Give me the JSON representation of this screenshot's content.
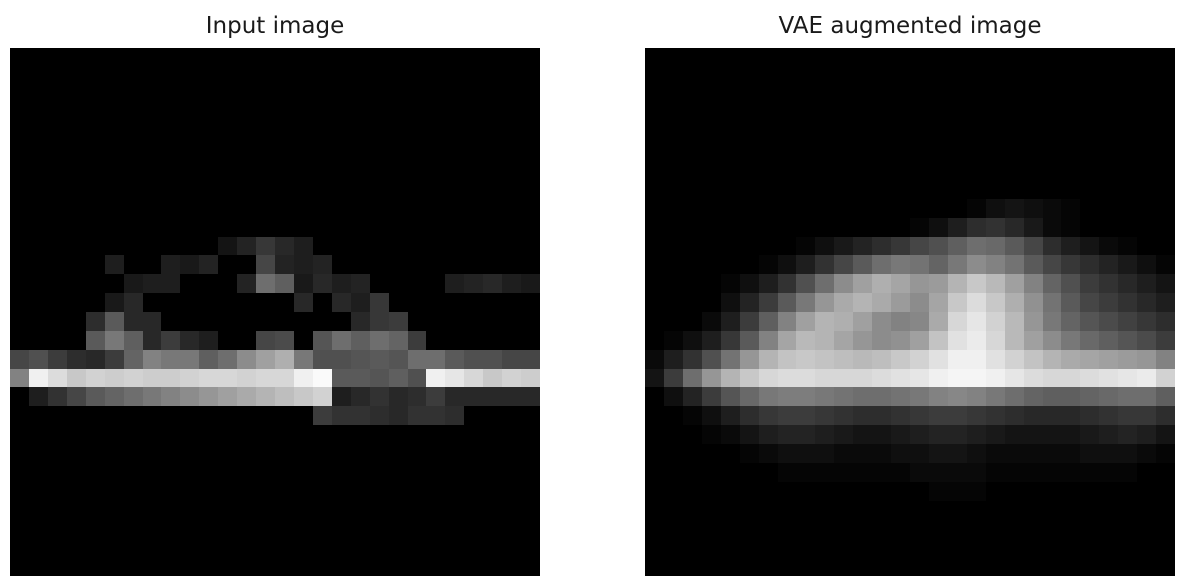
{
  "figure": {
    "panels": [
      {
        "title": "Input image",
        "grid_size": 28,
        "rows": {
          "10": [
            0,
            0,
            0,
            0,
            0,
            0,
            0,
            0,
            0,
            0,
            0,
            20,
            35,
            55,
            40,
            30,
            0,
            0,
            0,
            0,
            0,
            0,
            0,
            0,
            0,
            0,
            0,
            0
          ],
          "11": [
            0,
            0,
            0,
            0,
            0,
            30,
            0,
            0,
            30,
            25,
            35,
            0,
            0,
            70,
            35,
            30,
            35,
            0,
            0,
            0,
            0,
            0,
            0,
            0,
            0,
            0,
            0,
            0
          ],
          "12": [
            0,
            0,
            0,
            0,
            0,
            0,
            25,
            30,
            30,
            0,
            0,
            0,
            35,
            110,
            95,
            25,
            40,
            30,
            35,
            0,
            0,
            0,
            0,
            30,
            35,
            40,
            30,
            25
          ],
          "13": [
            0,
            0,
            0,
            0,
            0,
            25,
            40,
            0,
            0,
            0,
            0,
            0,
            0,
            0,
            0,
            40,
            0,
            40,
            30,
            55,
            0,
            0,
            0,
            0,
            0,
            0,
            0,
            0
          ],
          "14": [
            0,
            0,
            0,
            0,
            45,
            90,
            40,
            40,
            0,
            0,
            0,
            0,
            0,
            0,
            0,
            0,
            0,
            0,
            40,
            55,
            60,
            0,
            0,
            0,
            0,
            0,
            0,
            0
          ],
          "15": [
            0,
            0,
            0,
            0,
            90,
            120,
            95,
            40,
            60,
            40,
            30,
            0,
            0,
            70,
            75,
            0,
            85,
            110,
            95,
            110,
            100,
            60,
            0,
            0,
            0,
            0,
            0,
            0
          ],
          "16": [
            70,
            80,
            60,
            45,
            40,
            60,
            100,
            130,
            120,
            120,
            95,
            110,
            140,
            160,
            175,
            120,
            80,
            80,
            85,
            90,
            85,
            110,
            110,
            90,
            80,
            80,
            70,
            70
          ],
          "17": [
            130,
            240,
            220,
            200,
            210,
            205,
            210,
            205,
            205,
            210,
            215,
            215,
            210,
            215,
            215,
            240,
            250,
            90,
            90,
            85,
            95,
            80,
            240,
            230,
            215,
            200,
            210,
            205
          ],
          "18": [
            0,
            30,
            50,
            70,
            90,
            100,
            110,
            120,
            130,
            140,
            150,
            160,
            170,
            180,
            190,
            200,
            210,
            30,
            40,
            50,
            40,
            45,
            60,
            40,
            40,
            40,
            40,
            40
          ],
          "19": [
            0,
            0,
            0,
            0,
            0,
            0,
            0,
            0,
            0,
            0,
            0,
            0,
            0,
            0,
            0,
            0,
            60,
            50,
            50,
            45,
            40,
            50,
            50,
            45,
            0,
            0,
            0,
            0
          ]
        }
      },
      {
        "title": "VAE augmented image",
        "grid_size": 28,
        "rows": {
          "7": [
            0,
            0,
            0,
            0,
            0,
            0,
            0,
            0,
            0,
            0,
            0,
            0,
            0,
            0,
            0,
            0,
            0,
            0,
            0,
            0,
            0,
            0,
            0,
            0,
            0,
            0,
            0,
            0
          ],
          "8": [
            0,
            0,
            0,
            0,
            0,
            0,
            0,
            0,
            0,
            0,
            0,
            0,
            0,
            0,
            0,
            0,
            0,
            5,
            15,
            20,
            15,
            10,
            5,
            0,
            0,
            0,
            0,
            0
          ],
          "9": [
            0,
            0,
            0,
            0,
            0,
            0,
            0,
            0,
            0,
            0,
            0,
            0,
            0,
            0,
            5,
            15,
            30,
            45,
            50,
            40,
            25,
            10,
            5,
            0,
            0,
            0,
            0,
            0
          ],
          "10": [
            0,
            0,
            0,
            0,
            0,
            0,
            0,
            0,
            5,
            15,
            25,
            35,
            45,
            55,
            70,
            80,
            95,
            110,
            105,
            90,
            70,
            45,
            30,
            20,
            10,
            5,
            0,
            0
          ],
          "11": [
            0,
            0,
            0,
            0,
            0,
            0,
            5,
            15,
            30,
            50,
            70,
            90,
            110,
            120,
            115,
            100,
            120,
            140,
            130,
            115,
            90,
            70,
            55,
            45,
            35,
            25,
            15,
            5
          ],
          "12": [
            0,
            0,
            0,
            0,
            5,
            15,
            30,
            50,
            80,
            110,
            140,
            160,
            175,
            165,
            150,
            155,
            180,
            200,
            185,
            160,
            130,
            100,
            80,
            60,
            50,
            40,
            30,
            20
          ],
          "13": [
            0,
            0,
            0,
            0,
            15,
            35,
            60,
            90,
            120,
            150,
            170,
            180,
            170,
            155,
            140,
            165,
            200,
            220,
            200,
            175,
            145,
            115,
            90,
            70,
            60,
            50,
            40,
            30
          ],
          "14": [
            0,
            0,
            0,
            10,
            30,
            60,
            95,
            130,
            160,
            180,
            175,
            160,
            140,
            130,
            135,
            170,
            215,
            230,
            210,
            185,
            150,
            120,
            100,
            85,
            75,
            65,
            55,
            45
          ],
          "15": [
            0,
            5,
            15,
            30,
            55,
            90,
            130,
            165,
            185,
            180,
            165,
            150,
            140,
            145,
            160,
            195,
            225,
            235,
            215,
            185,
            160,
            140,
            120,
            105,
            95,
            85,
            75,
            60
          ],
          "16": [
            10,
            30,
            50,
            80,
            115,
            150,
            180,
            195,
            200,
            195,
            190,
            185,
            190,
            200,
            210,
            225,
            240,
            240,
            225,
            210,
            195,
            180,
            170,
            165,
            160,
            155,
            150,
            130
          ],
          "17": [
            20,
            60,
            110,
            150,
            180,
            200,
            215,
            220,
            220,
            215,
            215,
            215,
            220,
            225,
            230,
            240,
            245,
            245,
            240,
            230,
            220,
            215,
            215,
            220,
            225,
            230,
            235,
            210
          ],
          "18": [
            0,
            15,
            35,
            60,
            85,
            105,
            120,
            125,
            125,
            120,
            115,
            110,
            110,
            115,
            120,
            130,
            135,
            130,
            120,
            110,
            100,
            95,
            95,
            100,
            105,
            110,
            110,
            95
          ],
          "19": [
            0,
            0,
            5,
            15,
            30,
            45,
            55,
            60,
            60,
            55,
            50,
            45,
            45,
            50,
            55,
            60,
            60,
            55,
            50,
            45,
            40,
            40,
            40,
            45,
            50,
            55,
            55,
            45
          ],
          "20": [
            0,
            0,
            0,
            5,
            10,
            20,
            30,
            35,
            35,
            30,
            25,
            20,
            20,
            25,
            30,
            35,
            35,
            30,
            25,
            20,
            20,
            20,
            20,
            25,
            30,
            35,
            30,
            20
          ],
          "21": [
            0,
            0,
            0,
            0,
            0,
            5,
            10,
            15,
            15,
            15,
            10,
            10,
            10,
            15,
            15,
            20,
            20,
            15,
            10,
            10,
            10,
            10,
            10,
            15,
            15,
            15,
            10,
            5
          ],
          "22": [
            0,
            0,
            0,
            0,
            0,
            0,
            0,
            5,
            5,
            5,
            5,
            5,
            5,
            5,
            10,
            10,
            10,
            10,
            5,
            5,
            5,
            5,
            5,
            5,
            5,
            5,
            0,
            0
          ],
          "23": [
            0,
            0,
            0,
            0,
            0,
            0,
            0,
            0,
            0,
            0,
            0,
            0,
            0,
            0,
            0,
            5,
            5,
            5,
            0,
            0,
            0,
            0,
            0,
            0,
            0,
            0,
            0,
            0
          ]
        }
      }
    ]
  }
}
